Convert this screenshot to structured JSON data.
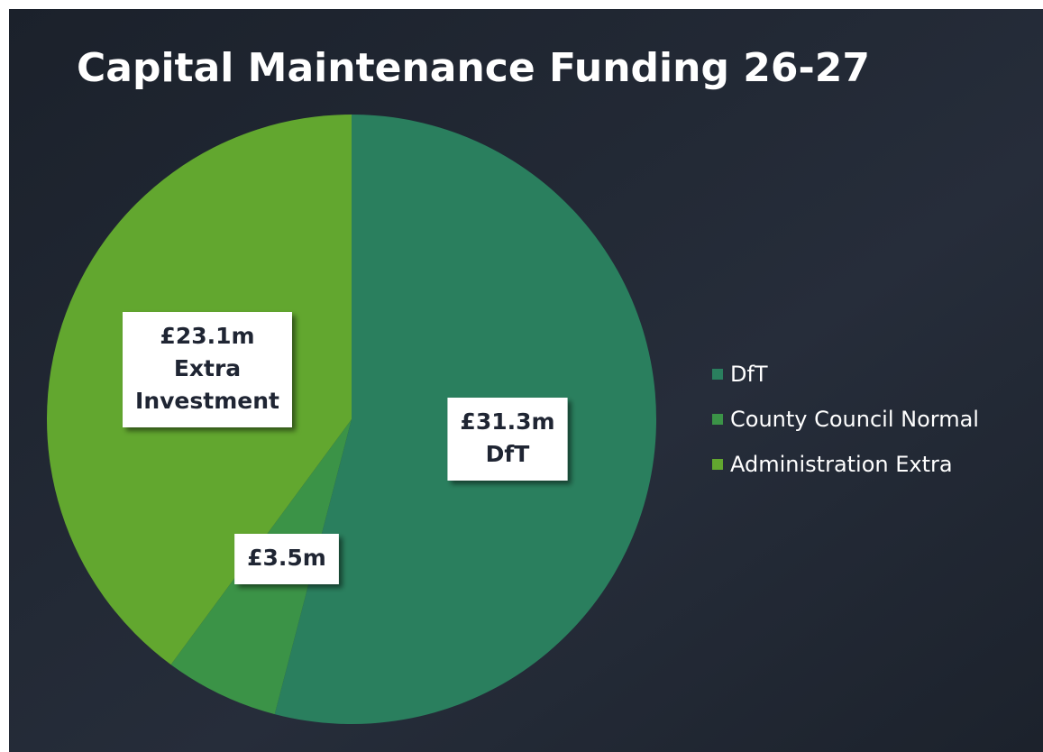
{
  "chart_data": {
    "type": "pie",
    "title": "Capital Maintenance Funding 26-27",
    "categories": [
      "DfT",
      "County Council Normal",
      "Administration Extra"
    ],
    "values": [
      31.3,
      3.5,
      23.1
    ],
    "value_labels": [
      "£31.3m",
      "£3.5m",
      "£23.1m"
    ],
    "label_captions": [
      [
        "DfT"
      ],
      [],
      [
        "Extra",
        "Investment"
      ]
    ],
    "colors": [
      "#2a7f5e",
      "#3b9347",
      "#62a72f"
    ],
    "legend": "right"
  }
}
